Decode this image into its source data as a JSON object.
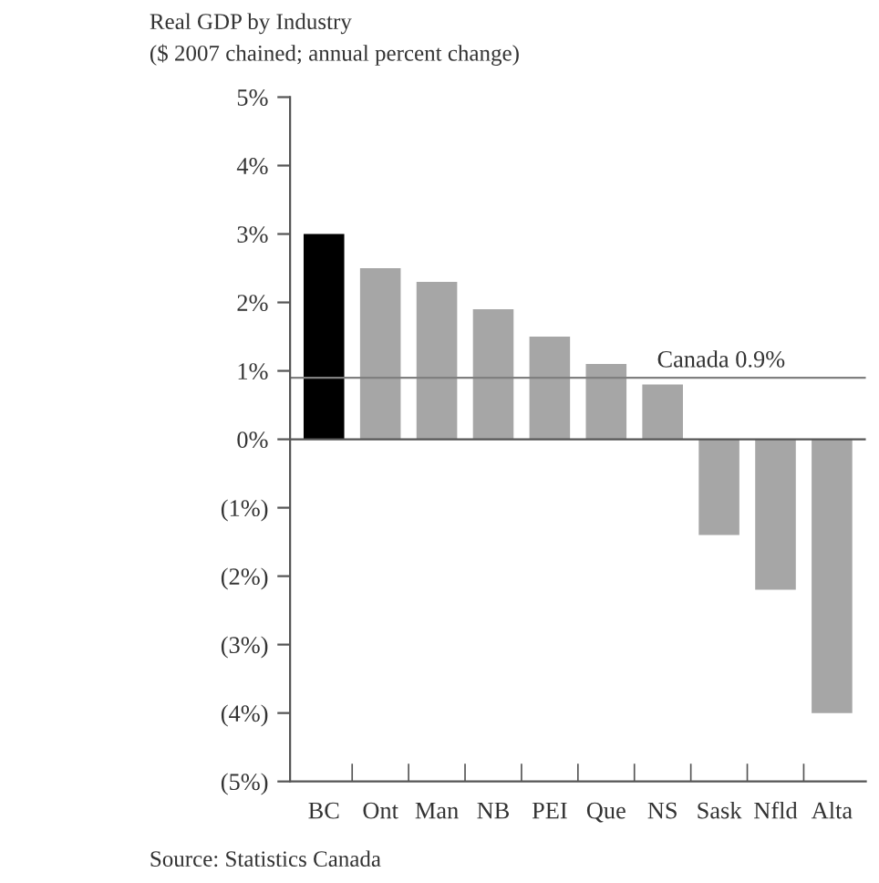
{
  "chart_data": {
    "type": "bar",
    "title": "Real GDP by Industry",
    "subtitle": "($ 2007 chained; annual percent change)",
    "categories": [
      "BC",
      "Ont",
      "Man",
      "NB",
      "PEI",
      "Que",
      "NS",
      "Sask",
      "Nfld",
      "Alta"
    ],
    "values": [
      3.0,
      2.5,
      2.3,
      1.9,
      1.5,
      1.1,
      0.8,
      -1.4,
      -2.2,
      -4.0
    ],
    "colors": [
      "#000000",
      "#a6a6a6",
      "#a6a6a6",
      "#a6a6a6",
      "#a6a6a6",
      "#a6a6a6",
      "#a6a6a6",
      "#a6a6a6",
      "#a6a6a6",
      "#a6a6a6"
    ],
    "ylim": [
      -5,
      5
    ],
    "yticks": [
      {
        "value": -5,
        "label": "(5%)"
      },
      {
        "value": -4,
        "label": "(4%)"
      },
      {
        "value": -3,
        "label": "(3%)"
      },
      {
        "value": -2,
        "label": "(2%)"
      },
      {
        "value": -1,
        "label": "(1%)"
      },
      {
        "value": 0,
        "label": "0%"
      },
      {
        "value": 1,
        "label": "1%"
      },
      {
        "value": 2,
        "label": "2%"
      },
      {
        "value": 3,
        "label": "3%"
      },
      {
        "value": 4,
        "label": "4%"
      },
      {
        "value": 5,
        "label": "5%"
      }
    ],
    "ref_lines": [
      {
        "axis": "y",
        "value": 0.9,
        "label": "Canada 0.9%",
        "color": "#808080"
      }
    ],
    "annotations": [
      "Source: Statistics Canada"
    ]
  }
}
